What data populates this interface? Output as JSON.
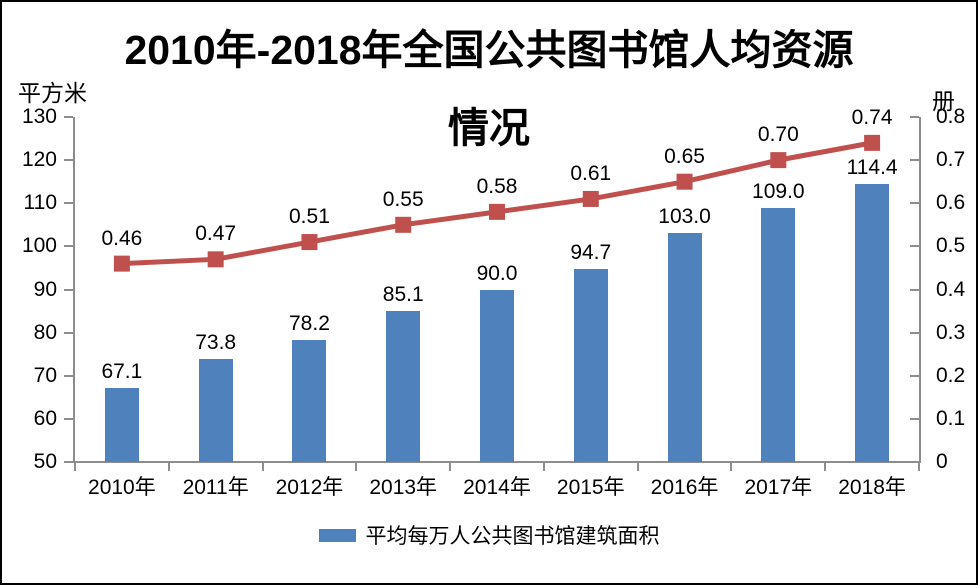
{
  "chart_data": {
    "type": "bar",
    "combo": "bar+line",
    "title": "2010年-2018年全国公共图书馆人均资源情况",
    "title_lines": [
      "2010年-2018年全国公共图书馆人均资源",
      "情况"
    ],
    "categories": [
      "2010年",
      "2011年",
      "2012年",
      "2013年",
      "2014年",
      "2015年",
      "2016年",
      "2017年",
      "2018年"
    ],
    "series": [
      {
        "name": "平均每万人公共图书馆建筑面积",
        "type": "bar",
        "axis": "left",
        "color": "#4f81bd",
        "values": [
          67.1,
          73.8,
          78.2,
          85.1,
          90.0,
          94.7,
          103.0,
          109.0,
          114.4
        ],
        "labels": [
          "67.1",
          "73.8",
          "78.2",
          "85.1",
          "90.0",
          "94.7",
          "103.0",
          "109.0",
          "114.4"
        ]
      },
      {
        "type": "line",
        "axis": "right",
        "color": "#c0504d",
        "marker": "square",
        "values": [
          0.46,
          0.47,
          0.51,
          0.55,
          0.58,
          0.61,
          0.65,
          0.7,
          0.74
        ],
        "labels": [
          "0.46",
          "0.47",
          "0.51",
          "0.55",
          "0.58",
          "0.61",
          "0.65",
          "0.70",
          "0.74"
        ]
      }
    ],
    "left_axis": {
      "unit_label": "平方米",
      "min": 50,
      "max": 130,
      "ticks": [
        "130",
        "120",
        "110",
        "100",
        "90",
        "80",
        "70",
        "60",
        "50"
      ]
    },
    "right_axis": {
      "unit_label": "册",
      "min": 0,
      "max": 0.8,
      "ticks": [
        "0.8",
        "0.7",
        "0.6",
        "0.5",
        "0.4",
        "0.3",
        "0.2",
        "0.1",
        "0"
      ]
    },
    "legend": {
      "position": "bottom",
      "items": [
        {
          "label": "平均每万人公共图书馆建筑面积",
          "color": "#4f81bd"
        }
      ]
    },
    "grid": false,
    "colors": {
      "axis_line": "#8d8d8d",
      "text": "#000000",
      "background": "#ffffff"
    }
  }
}
